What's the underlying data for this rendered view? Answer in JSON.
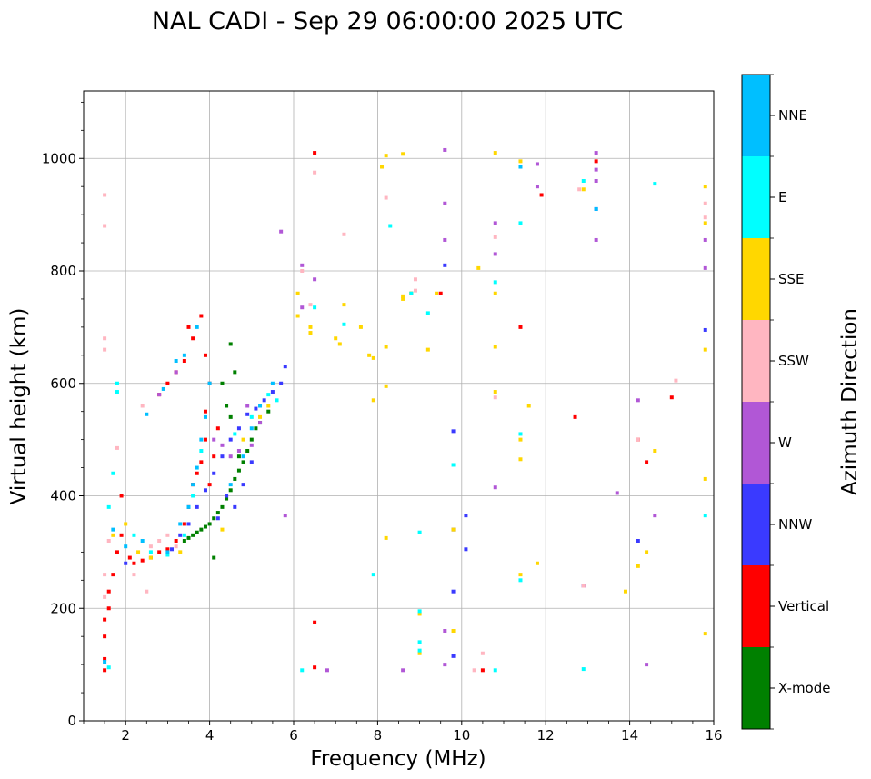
{
  "chart_data": {
    "type": "scatter",
    "title": "NAL CADI - Sep 29 06:00:00 2025 UTC",
    "xlabel": "Frequency (MHz)",
    "ylabel": "Virtual height (km)",
    "xlim": [
      1,
      16
    ],
    "ylim": [
      0,
      1120
    ],
    "xticks": [
      2,
      4,
      6,
      8,
      10,
      12,
      14,
      16
    ],
    "yticks": [
      0,
      200,
      400,
      600,
      800,
      1000
    ],
    "grid": true,
    "colorbar": {
      "label": "Azimuth Direction",
      "categories": [
        {
          "name": "X-mode",
          "color": "#008000"
        },
        {
          "name": "Vertical",
          "color": "#ff0000"
        },
        {
          "name": "NNW",
          "color": "#3a3aff"
        },
        {
          "name": "W",
          "color": "#b157d6"
        },
        {
          "name": "SSW",
          "color": "#ffb6c1"
        },
        {
          "name": "SSE",
          "color": "#ffd700"
        },
        {
          "name": "E",
          "color": "#00ffff"
        },
        {
          "name": "NNE",
          "color": "#00bfff"
        }
      ]
    },
    "series": [
      {
        "name": "X-mode",
        "points": [
          [
            3.4,
            320
          ],
          [
            3.5,
            325
          ],
          [
            3.6,
            330
          ],
          [
            3.7,
            335
          ],
          [
            3.8,
            340
          ],
          [
            3.9,
            345
          ],
          [
            4.0,
            350
          ],
          [
            4.1,
            360
          ],
          [
            4.2,
            370
          ],
          [
            4.3,
            380
          ],
          [
            4.4,
            395
          ],
          [
            4.5,
            410
          ],
          [
            4.6,
            430
          ],
          [
            4.7,
            445
          ],
          [
            4.8,
            460
          ],
          [
            4.9,
            480
          ],
          [
            5.0,
            500
          ],
          [
            5.2,
            530
          ],
          [
            5.4,
            550
          ],
          [
            4.5,
            540
          ],
          [
            4.6,
            620
          ],
          [
            4.5,
            670
          ],
          [
            4.4,
            560
          ],
          [
            4.3,
            600
          ],
          [
            4.7,
            470
          ],
          [
            5.1,
            520
          ],
          [
            4.1,
            290
          ]
        ]
      },
      {
        "name": "Vertical",
        "points": [
          [
            1.5,
            90
          ],
          [
            1.5,
            110
          ],
          [
            1.5,
            150
          ],
          [
            1.5,
            180
          ],
          [
            1.6,
            200
          ],
          [
            1.6,
            230
          ],
          [
            1.7,
            260
          ],
          [
            1.8,
            300
          ],
          [
            1.9,
            330
          ],
          [
            1.9,
            400
          ],
          [
            2.1,
            290
          ],
          [
            2.2,
            280
          ],
          [
            2.4,
            285
          ],
          [
            2.6,
            290
          ],
          [
            2.8,
            300
          ],
          [
            3.0,
            305
          ],
          [
            3.2,
            320
          ],
          [
            3.4,
            350
          ],
          [
            3.5,
            380
          ],
          [
            3.6,
            420
          ],
          [
            3.7,
            440
          ],
          [
            3.8,
            460
          ],
          [
            3.9,
            500
          ],
          [
            3.9,
            550
          ],
          [
            4.0,
            600
          ],
          [
            3.9,
            650
          ],
          [
            3.8,
            720
          ],
          [
            3.6,
            680
          ],
          [
            3.4,
            640
          ],
          [
            3.2,
            620
          ],
          [
            3.0,
            600
          ],
          [
            2.8,
            580
          ],
          [
            3.5,
            700
          ],
          [
            4.0,
            420
          ],
          [
            4.1,
            470
          ],
          [
            4.2,
            520
          ],
          [
            6.5,
            95
          ],
          [
            6.5,
            175
          ],
          [
            6.5,
            1010
          ],
          [
            8.8,
            760
          ],
          [
            9.5,
            760
          ],
          [
            10.5,
            90
          ],
          [
            11.4,
            700
          ],
          [
            11.9,
            935
          ],
          [
            12.7,
            540
          ],
          [
            13.2,
            995
          ],
          [
            14.2,
            500
          ],
          [
            14.4,
            460
          ],
          [
            15.0,
            575
          ]
        ]
      },
      {
        "name": "NNW",
        "points": [
          [
            2.0,
            280
          ],
          [
            3.1,
            305
          ],
          [
            3.3,
            330
          ],
          [
            3.5,
            350
          ],
          [
            3.7,
            380
          ],
          [
            3.9,
            410
          ],
          [
            4.1,
            440
          ],
          [
            4.3,
            470
          ],
          [
            4.5,
            500
          ],
          [
            4.7,
            520
          ],
          [
            4.9,
            545
          ],
          [
            5.1,
            555
          ],
          [
            5.3,
            570
          ],
          [
            5.5,
            585
          ],
          [
            5.7,
            600
          ],
          [
            5.8,
            630
          ],
          [
            4.6,
            380
          ],
          [
            4.8,
            420
          ],
          [
            5.0,
            460
          ],
          [
            4.4,
            400
          ],
          [
            4.2,
            360
          ],
          [
            9.8,
            340
          ],
          [
            9.8,
            230
          ],
          [
            9.8,
            115
          ],
          [
            10.1,
            305
          ],
          [
            10.1,
            365
          ],
          [
            9.8,
            515
          ],
          [
            9.6,
            810
          ],
          [
            15.8,
            695
          ],
          [
            13.2,
            910
          ],
          [
            12.9,
            240
          ],
          [
            14.2,
            320
          ]
        ]
      },
      {
        "name": "W",
        "points": [
          [
            2.8,
            580
          ],
          [
            3.2,
            620
          ],
          [
            4.1,
            500
          ],
          [
            4.3,
            490
          ],
          [
            4.5,
            470
          ],
          [
            4.7,
            480
          ],
          [
            5.0,
            490
          ],
          [
            4.9,
            560
          ],
          [
            5.2,
            530
          ],
          [
            5.7,
            870
          ],
          [
            6.2,
            810
          ],
          [
            6.2,
            735
          ],
          [
            6.5,
            785
          ],
          [
            6.8,
            90
          ],
          [
            9.6,
            1015
          ],
          [
            9.6,
            920
          ],
          [
            9.6,
            855
          ],
          [
            9.6,
            160
          ],
          [
            9.6,
            100
          ],
          [
            10.8,
            885
          ],
          [
            10.8,
            830
          ],
          [
            10.8,
            415
          ],
          [
            11.8,
            990
          ],
          [
            11.8,
            950
          ],
          [
            13.2,
            1010
          ],
          [
            13.2,
            980
          ],
          [
            13.2,
            960
          ],
          [
            13.2,
            855
          ],
          [
            13.7,
            405
          ],
          [
            14.2,
            570
          ],
          [
            14.4,
            100
          ],
          [
            14.6,
            365
          ],
          [
            15.8,
            855
          ],
          [
            15.8,
            805
          ],
          [
            8.6,
            90
          ],
          [
            12.9,
            240
          ],
          [
            5.8,
            365
          ]
        ]
      },
      {
        "name": "SSW",
        "points": [
          [
            1.5,
            880
          ],
          [
            1.5,
            935
          ],
          [
            1.5,
            680
          ],
          [
            1.5,
            660
          ],
          [
            1.5,
            260
          ],
          [
            1.5,
            220
          ],
          [
            1.6,
            320
          ],
          [
            1.8,
            485
          ],
          [
            2.4,
            560
          ],
          [
            2.5,
            230
          ],
          [
            2.2,
            260
          ],
          [
            2.6,
            310
          ],
          [
            2.8,
            320
          ],
          [
            3.0,
            330
          ],
          [
            3.2,
            310
          ],
          [
            6.4,
            740
          ],
          [
            6.5,
            975
          ],
          [
            7.2,
            865
          ],
          [
            8.2,
            930
          ],
          [
            8.9,
            785
          ],
          [
            8.9,
            765
          ],
          [
            10.3,
            90
          ],
          [
            10.5,
            120
          ],
          [
            10.8,
            860
          ],
          [
            10.8,
            575
          ],
          [
            12.8,
            945
          ],
          [
            14.2,
            500
          ],
          [
            15.1,
            605
          ],
          [
            15.8,
            920
          ],
          [
            15.8,
            895
          ],
          [
            12.9,
            240
          ],
          [
            6.2,
            800
          ]
        ]
      },
      {
        "name": "SSE",
        "points": [
          [
            1.7,
            330
          ],
          [
            2.0,
            350
          ],
          [
            2.3,
            300
          ],
          [
            2.6,
            290
          ],
          [
            3.3,
            300
          ],
          [
            4.3,
            340
          ],
          [
            4.8,
            500
          ],
          [
            5.2,
            540
          ],
          [
            5.4,
            560
          ],
          [
            6.1,
            760
          ],
          [
            6.1,
            720
          ],
          [
            6.4,
            700
          ],
          [
            6.4,
            690
          ],
          [
            7.0,
            680
          ],
          [
            7.1,
            670
          ],
          [
            7.2,
            740
          ],
          [
            7.6,
            700
          ],
          [
            7.8,
            650
          ],
          [
            7.9,
            645
          ],
          [
            7.9,
            570
          ],
          [
            8.1,
            985
          ],
          [
            8.2,
            1005
          ],
          [
            8.2,
            665
          ],
          [
            8.2,
            595
          ],
          [
            8.2,
            325
          ],
          [
            8.6,
            1008
          ],
          [
            8.6,
            755
          ],
          [
            8.6,
            750
          ],
          [
            8.8,
            760
          ],
          [
            9.2,
            660
          ],
          [
            9.4,
            760
          ],
          [
            9.8,
            340
          ],
          [
            9.8,
            160
          ],
          [
            10.4,
            805
          ],
          [
            10.8,
            1010
          ],
          [
            10.8,
            760
          ],
          [
            10.8,
            665
          ],
          [
            10.8,
            585
          ],
          [
            11.4,
            995
          ],
          [
            11.4,
            500
          ],
          [
            11.4,
            465
          ],
          [
            11.4,
            260
          ],
          [
            11.6,
            560
          ],
          [
            11.8,
            280
          ],
          [
            12.9,
            945
          ],
          [
            13.9,
            230
          ],
          [
            14.2,
            275
          ],
          [
            14.4,
            300
          ],
          [
            14.6,
            480
          ],
          [
            15.8,
            950
          ],
          [
            15.8,
            885
          ],
          [
            15.8,
            660
          ],
          [
            15.8,
            430
          ],
          [
            15.8,
            155
          ],
          [
            9.0,
            190
          ],
          [
            9.0,
            120
          ]
        ]
      },
      {
        "name": "E",
        "points": [
          [
            1.6,
            95
          ],
          [
            1.6,
            380
          ],
          [
            1.7,
            440
          ],
          [
            1.8,
            600
          ],
          [
            1.8,
            585
          ],
          [
            2.2,
            330
          ],
          [
            2.6,
            300
          ],
          [
            3.0,
            295
          ],
          [
            3.4,
            330
          ],
          [
            3.6,
            400
          ],
          [
            3.8,
            480
          ],
          [
            4.6,
            510
          ],
          [
            5.0,
            540
          ],
          [
            5.4,
            580
          ],
          [
            5.6,
            570
          ],
          [
            6.5,
            735
          ],
          [
            7.2,
            705
          ],
          [
            7.9,
            260
          ],
          [
            8.3,
            880
          ],
          [
            8.8,
            760
          ],
          [
            9.0,
            335
          ],
          [
            9.0,
            195
          ],
          [
            9.0,
            140
          ],
          [
            9.0,
            125
          ],
          [
            9.2,
            725
          ],
          [
            9.8,
            455
          ],
          [
            10.8,
            780
          ],
          [
            10.8,
            90
          ],
          [
            11.4,
            885
          ],
          [
            11.4,
            510
          ],
          [
            11.4,
            250
          ],
          [
            12.9,
            960
          ],
          [
            12.9,
            92
          ],
          [
            14.6,
            955
          ],
          [
            15.8,
            365
          ],
          [
            6.2,
            90
          ]
        ]
      },
      {
        "name": "NNE",
        "points": [
          [
            1.5,
            105
          ],
          [
            1.7,
            340
          ],
          [
            2.0,
            310
          ],
          [
            2.4,
            320
          ],
          [
            3.0,
            300
          ],
          [
            3.3,
            350
          ],
          [
            3.5,
            380
          ],
          [
            3.6,
            420
          ],
          [
            3.7,
            450
          ],
          [
            3.8,
            500
          ],
          [
            3.9,
            540
          ],
          [
            4.0,
            600
          ],
          [
            3.7,
            700
          ],
          [
            3.4,
            650
          ],
          [
            3.2,
            640
          ],
          [
            2.9,
            590
          ],
          [
            4.5,
            420
          ],
          [
            4.8,
            470
          ],
          [
            5.0,
            520
          ],
          [
            5.2,
            560
          ],
          [
            5.5,
            600
          ],
          [
            11.4,
            985
          ],
          [
            13.2,
            910
          ],
          [
            2.5,
            545
          ]
        ]
      }
    ]
  }
}
